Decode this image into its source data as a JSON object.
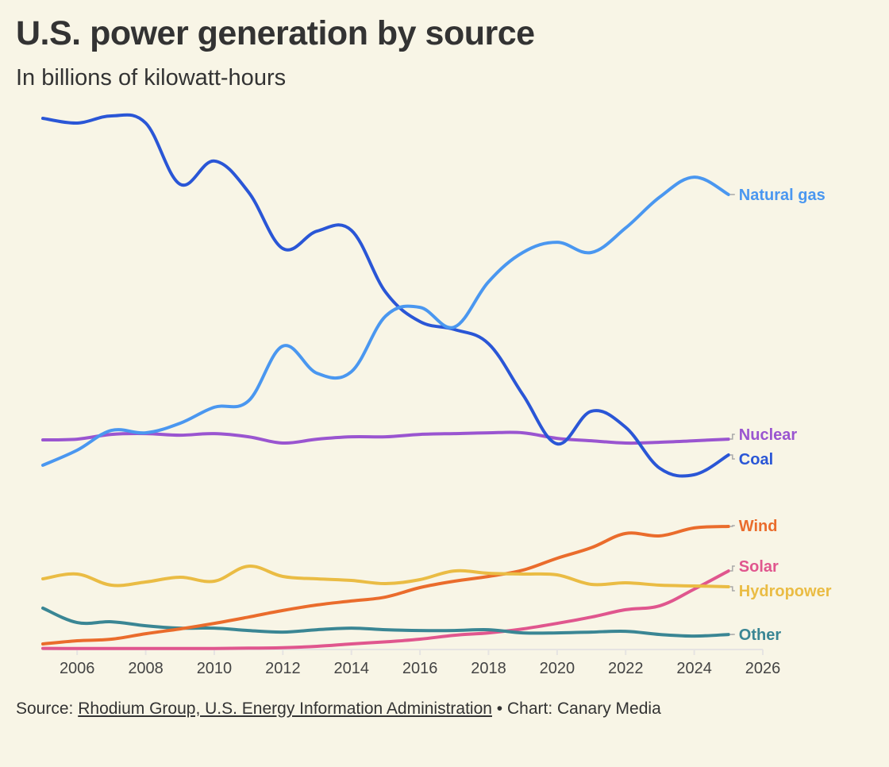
{
  "header": {
    "title": "U.S. power generation by source",
    "subtitle": "In billions of kilowatt-hours"
  },
  "footer": {
    "source_prefix": "Source: ",
    "source_link": "Rhodium Group, U.S. Energy Information Administration",
    "separator": " • ",
    "credit": "Chart: Canary Media"
  },
  "chart_data": {
    "type": "line",
    "title": "U.S. power generation by source",
    "subtitle": "In billions of kilowatt-hours",
    "xlabel": "",
    "ylabel": "",
    "grid": false,
    "legend": "direct labels at right end of lines",
    "x": [
      2005,
      2006,
      2007,
      2008,
      2009,
      2010,
      2011,
      2012,
      2013,
      2014,
      2015,
      2016,
      2017,
      2018,
      2019,
      2020,
      2021,
      2022,
      2023,
      2024,
      2025
    ],
    "xlim": [
      2005,
      2026
    ],
    "xticks": [
      2006,
      2008,
      2010,
      2012,
      2014,
      2016,
      2018,
      2020,
      2022,
      2024,
      2026
    ],
    "ylim": [
      0,
      2050
    ],
    "series": [
      {
        "name": "Natural gas",
        "color": "#4a97f0",
        "values": [
          696,
          753,
          828,
          819,
          855,
          916,
          940,
          1148,
          1045,
          1051,
          1262,
          1295,
          1220,
          1392,
          1503,
          1542,
          1503,
          1596,
          1714,
          1789,
          1723
        ]
      },
      {
        "name": "Nuclear",
        "color": "#9a55d0",
        "values": [
          792,
          795,
          813,
          816,
          810,
          816,
          804,
          780,
          795,
          804,
          804,
          813,
          816,
          819,
          819,
          798,
          789,
          780,
          783,
          789,
          795
        ]
      },
      {
        "name": "Coal",
        "color": "#2a56d6",
        "values": [
          2012,
          1994,
          2021,
          1994,
          1762,
          1850,
          1732,
          1518,
          1584,
          1587,
          1352,
          1241,
          1211,
          1157,
          964,
          777,
          901,
          840,
          684,
          660,
          735
        ]
      },
      {
        "name": "Wind",
        "color": "#ea6c2c",
        "values": [
          18,
          30,
          36,
          57,
          75,
          96,
          120,
          145,
          166,
          181,
          196,
          232,
          256,
          274,
          298,
          343,
          383,
          437,
          428,
          458,
          464
        ]
      },
      {
        "name": "Solar",
        "color": "#e0568e",
        "values": [
          1,
          1,
          1,
          1,
          1,
          1,
          2,
          4,
          9,
          18,
          26,
          36,
          51,
          60,
          75,
          96,
          120,
          148,
          163,
          226,
          295
        ]
      },
      {
        "name": "Hydropower",
        "color": "#eabc44",
        "values": [
          265,
          283,
          241,
          253,
          271,
          256,
          313,
          274,
          265,
          259,
          247,
          262,
          295,
          286,
          283,
          280,
          244,
          250,
          241,
          238,
          235
        ]
      },
      {
        "name": "Other",
        "color": "#3a8694",
        "values": [
          154,
          99,
          102,
          87,
          78,
          78,
          69,
          63,
          72,
          78,
          72,
          69,
          69,
          72,
          60,
          60,
          63,
          66,
          54,
          48,
          54
        ]
      }
    ]
  }
}
